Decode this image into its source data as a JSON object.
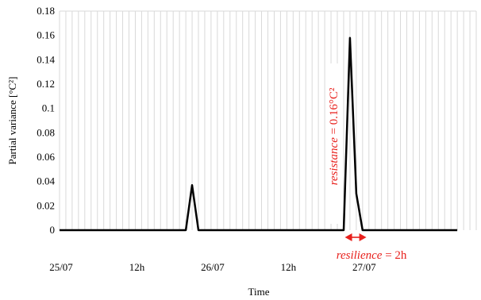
{
  "chart_data": {
    "type": "line",
    "xlabel": "Time",
    "ylabel": "Partial variance [°C²]",
    "xlim": [
      0,
      33
    ],
    "ylim": [
      0,
      0.18
    ],
    "yticks": [
      "0",
      "0.02",
      "0.04",
      "0.06",
      "0.08",
      "0.1",
      "0.12",
      "0.14",
      "0.16",
      "0.18"
    ],
    "xticks": [
      {
        "label": "25/07",
        "x": 0
      },
      {
        "label": "12h",
        "x": 6
      },
      {
        "label": "26/07",
        "x": 12
      },
      {
        "label": "12h",
        "x": 18
      },
      {
        "label": "27/07",
        "x": 24
      }
    ],
    "grid": "vertical",
    "series": [
      {
        "color": "#000000",
        "points": [
          [
            0,
            0
          ],
          [
            10,
            0
          ],
          [
            10.5,
            0.037
          ],
          [
            11,
            0
          ],
          [
            22.5,
            0
          ],
          [
            23,
            0.158
          ],
          [
            23.5,
            0.03
          ],
          [
            24,
            0
          ],
          [
            31.5,
            0
          ]
        ]
      }
    ],
    "annotations": {
      "resistance": {
        "word": "resistance",
        "rest": " = 0.16°C²"
      },
      "resilience": {
        "word": "resilience",
        "rest": " = 2h"
      }
    },
    "annotation_color": "#e8201c"
  }
}
